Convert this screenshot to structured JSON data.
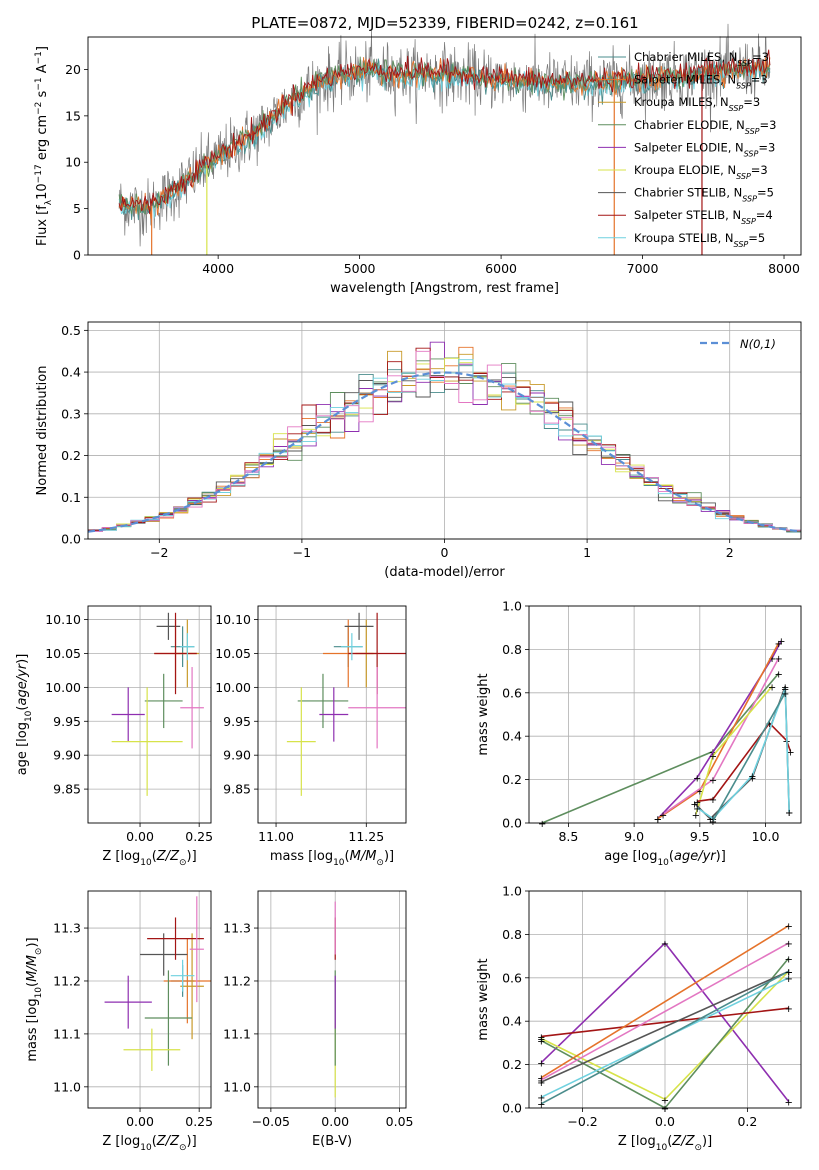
{
  "colors": {
    "Chabrier MILES": "#4a8c8c",
    "Salpeter MILES": "#e5732b",
    "Kroupa MILES": "#c89a2a",
    "Chabrier ELODIE": "#5e8e5e",
    "Salpeter ELODIE": "#8e2fb0",
    "Kroupa ELODIE": "#d7e34a",
    "Chabrier STELIB": "#555555",
    "Salpeter STELIB": "#a31515",
    "Kroupa STELIB": "#6fd1df",
    "pink": "#e377c2",
    "gauss": "#5b8fd6"
  },
  "chart_data": [
    {
      "type": "line",
      "title": "PLATE=0872, MJD=52339, FIBERID=0242, z=0.161",
      "xlabel": "wavelength [Angstrom, rest frame]",
      "ylabel": "Flux [f_λ10^-17 erg cm^-2 s^-1 A^-1]",
      "xlim": [
        3080,
        8120
      ],
      "ylim": [
        0,
        23.5
      ],
      "xticks": [
        4000,
        5000,
        6000,
        7000,
        8000
      ],
      "yticks": [
        0,
        5,
        10,
        15,
        20
      ],
      "grid": false,
      "legend_position": "top-right",
      "continuum": {
        "x": [
          3300,
          3500,
          3700,
          3900,
          4100,
          4300,
          4500,
          4700,
          4900,
          5100,
          5300,
          5500,
          5700,
          5900,
          6100,
          6300,
          6500,
          6700,
          6900,
          7100,
          7300,
          7500,
          7700,
          7900
        ],
        "y": [
          5.5,
          5.0,
          7.0,
          9.5,
          11.5,
          13.5,
          16.5,
          18.5,
          19.5,
          19.8,
          19.5,
          19.6,
          19.3,
          19.0,
          18.8,
          18.5,
          18.5,
          18.6,
          18.8,
          19.0,
          19.4,
          19.7,
          20.0,
          20.2
        ]
      },
      "series": [
        {
          "name": "Chabrier MILES, N_SSP=3",
          "label_main": "Chabrier MILES, N",
          "label_sub": "SSP",
          "label_tail": "=3"
        },
        {
          "name": "Salpeter MILES, N_SSP=3",
          "label_main": "Salpeter MILES, N",
          "label_sub": "SSP",
          "label_tail": "=3"
        },
        {
          "name": "Kroupa MILES, N_SSP=3",
          "label_main": "Kroupa MILES, N",
          "label_sub": "SSP",
          "label_tail": "=3"
        },
        {
          "name": "Chabrier ELODIE, N_SSP=3",
          "label_main": "Chabrier ELODIE, N",
          "label_sub": "SSP",
          "label_tail": "=3"
        },
        {
          "name": "Salpeter ELODIE, N_SSP=3",
          "label_main": "Salpeter ELODIE, N",
          "label_sub": "SSP",
          "label_tail": "=3"
        },
        {
          "name": "Kroupa ELODIE, N_SSP=3",
          "label_main": "Kroupa ELODIE, N",
          "label_sub": "SSP",
          "label_tail": "=3"
        },
        {
          "name": "Chabrier STELIB, N_SSP=5",
          "label_main": "Chabrier STELIB, N",
          "label_sub": "SSP",
          "label_tail": "=5"
        },
        {
          "name": "Salpeter STELIB, N_SSP=4",
          "label_main": "Salpeter STELIB, N",
          "label_sub": "SSP",
          "label_tail": "=4"
        },
        {
          "name": "Kroupa STELIB, N_SSP=5",
          "label_main": "Kroupa STELIB, N",
          "label_sub": "SSP",
          "label_tail": "=5"
        }
      ]
    },
    {
      "type": "histogram",
      "xlabel": "(data-model)/error",
      "ylabel": "Normed distribution",
      "xlim": [
        -2.5,
        2.5
      ],
      "ylim": [
        0,
        0.52
      ],
      "xticks": [
        -2,
        -1,
        0,
        1,
        2
      ],
      "yticks": [
        0.0,
        0.1,
        0.2,
        0.3,
        0.4,
        0.5
      ],
      "grid": true,
      "bin_width": 0.1,
      "legend_position": "top-right",
      "legend_label": "N(0,1)",
      "reference_curve": "normal pdf, mean 0, sigma 1, dashed"
    },
    {
      "type": "errorbar",
      "xlabel": "Z [log10(Z/Z_sun)]",
      "ylabel": "age  [log10(age/yr)]",
      "xlim": [
        -0.22,
        0.3
      ],
      "ylim": [
        9.8,
        10.12
      ],
      "xticks": [
        0.0,
        0.25
      ],
      "yticks": [
        9.85,
        9.9,
        9.95,
        10.0,
        10.05,
        10.1
      ],
      "grid": true,
      "points": [
        {
          "model": "Chabrier MILES",
          "x": 0.18,
          "y": 10.06,
          "xerr": 0.05,
          "yerr": 0.03
        },
        {
          "model": "Salpeter MILES",
          "x": 0.15,
          "y": 10.05,
          "xerr": 0.09,
          "yerr": 0.05
        },
        {
          "model": "Kroupa MILES",
          "x": 0.2,
          "y": 10.05,
          "xerr": 0.05,
          "yerr": 0.05
        },
        {
          "model": "Chabrier ELODIE",
          "x": 0.1,
          "y": 9.98,
          "xerr": 0.08,
          "yerr": 0.04
        },
        {
          "model": "Salpeter ELODIE",
          "x": -0.05,
          "y": 9.96,
          "xerr": 0.07,
          "yerr": 0.04
        },
        {
          "model": "Kroupa ELODIE",
          "x": 0.03,
          "y": 9.92,
          "xerr": 0.15,
          "yerr": 0.08
        },
        {
          "model": "Chabrier STELIB",
          "x": 0.12,
          "y": 10.09,
          "xerr": 0.05,
          "yerr": 0.02
        },
        {
          "model": "Salpeter STELIB",
          "x": 0.15,
          "y": 10.05,
          "xerr": 0.09,
          "yerr": 0.06
        },
        {
          "model": "Kroupa STELIB",
          "x": 0.2,
          "y": 10.06,
          "xerr": 0.03,
          "yerr": 0.02
        },
        {
          "model": "pink",
          "x": 0.22,
          "y": 9.97,
          "xerr": 0.05,
          "yerr": 0.06
        }
      ]
    },
    {
      "type": "errorbar",
      "xlabel": "mass [log10(M/M_sun)]",
      "ylabel": "",
      "xlim": [
        10.95,
        11.36
      ],
      "ylim": [
        9.8,
        10.12
      ],
      "xticks": [
        11.0,
        11.25
      ],
      "yticks": [
        9.85,
        9.9,
        9.95,
        10.0,
        10.05,
        10.1
      ],
      "grid": true,
      "points": [
        {
          "model": "Chabrier MILES",
          "x": 11.2,
          "y": 10.06,
          "xerr": 0.04,
          "yerr": 0.03
        },
        {
          "model": "Salpeter MILES",
          "x": 11.2,
          "y": 10.05,
          "xerr": 0.07,
          "yerr": 0.05
        },
        {
          "model": "Kroupa MILES",
          "x": 11.25,
          "y": 10.05,
          "xerr": 0.03,
          "yerr": 0.05
        },
        {
          "model": "Chabrier ELODIE",
          "x": 11.13,
          "y": 9.98,
          "xerr": 0.07,
          "yerr": 0.04
        },
        {
          "model": "Salpeter ELODIE",
          "x": 11.16,
          "y": 9.96,
          "xerr": 0.04,
          "yerr": 0.04
        },
        {
          "model": "Kroupa ELODIE",
          "x": 11.07,
          "y": 9.92,
          "xerr": 0.04,
          "yerr": 0.08
        },
        {
          "model": "Chabrier STELIB",
          "x": 11.23,
          "y": 10.09,
          "xerr": 0.04,
          "yerr": 0.02
        },
        {
          "model": "Salpeter STELIB",
          "x": 11.28,
          "y": 10.05,
          "xerr": 0.08,
          "yerr": 0.06
        },
        {
          "model": "Kroupa STELIB",
          "x": 11.21,
          "y": 10.06,
          "xerr": 0.03,
          "yerr": 0.02
        },
        {
          "model": "pink",
          "x": 11.28,
          "y": 9.97,
          "xerr": 0.08,
          "yerr": 0.06
        }
      ]
    },
    {
      "type": "line",
      "xlabel": "age  [log10(age/yr)]",
      "ylabel": "mass weight",
      "xlim": [
        8.2,
        10.27
      ],
      "ylim": [
        0,
        1.0
      ],
      "xticks": [
        8.5,
        9.0,
        9.5,
        10.0
      ],
      "yticks": [
        0.0,
        0.2,
        0.4,
        0.6,
        0.8,
        1.0
      ],
      "grid": true,
      "series": [
        {
          "model": "Chabrier ELODIE",
          "x": [
            8.3,
            9.6,
            10.1
          ],
          "y": [
            0.0,
            0.33,
            0.69
          ]
        },
        {
          "model": "Salpeter ELODIE",
          "x": [
            9.18,
            9.48,
            10.05,
            10.12
          ],
          "y": [
            0.02,
            0.21,
            0.76,
            0.84
          ]
        },
        {
          "model": "Salpeter MILES",
          "x": [
            9.18,
            9.5,
            10.1
          ],
          "y": [
            0.02,
            0.15,
            0.83
          ]
        },
        {
          "model": "pink",
          "x": [
            9.22,
            9.6,
            10.1
          ],
          "y": [
            0.04,
            0.2,
            0.76
          ]
        },
        {
          "model": "Kroupa ELODIE",
          "x": [
            9.47,
            9.6,
            10.05
          ],
          "y": [
            0.04,
            0.31,
            0.63
          ]
        },
        {
          "model": "Chabrier STELIB",
          "x": [
            9.46,
            9.58,
            9.9,
            10.15,
            10.18
          ],
          "y": [
            0.09,
            0.02,
            0.21,
            0.63,
            0.05
          ]
        },
        {
          "model": "Salpeter STELIB",
          "x": [
            9.48,
            9.6,
            10.03,
            10.16,
            10.19
          ],
          "y": [
            0.1,
            0.11,
            0.46,
            0.38,
            0.33
          ]
        },
        {
          "model": "Kroupa STELIB",
          "x": [
            9.48,
            9.6,
            9.9,
            10.15,
            10.18
          ],
          "y": [
            0.07,
            0.02,
            0.22,
            0.62,
            0.05
          ]
        },
        {
          "model": "Chabrier MILES",
          "x": [
            9.6,
            10.15
          ],
          "y": [
            0.01,
            0.6
          ]
        }
      ]
    },
    {
      "type": "errorbar",
      "xlabel": "Z [log10(Z/Z_sun)]",
      "ylabel": "mass [log10(M/M_sun)]",
      "xlim": [
        -0.22,
        0.3
      ],
      "ylim": [
        10.96,
        11.37
      ],
      "xticks": [
        0.0,
        0.25
      ],
      "yticks": [
        11.0,
        11.1,
        11.2,
        11.3
      ],
      "grid": true,
      "points": [
        {
          "model": "Chabrier MILES",
          "x": 0.18,
          "y": 11.2,
          "xerr": 0.05,
          "yerr": 0.03
        },
        {
          "model": "Salpeter MILES",
          "x": 0.2,
          "y": 11.2,
          "xerr": 0.1,
          "yerr": 0.08
        },
        {
          "model": "Kroupa MILES",
          "x": 0.22,
          "y": 11.19,
          "xerr": 0.05,
          "yerr": 0.1
        },
        {
          "model": "Chabrier ELODIE",
          "x": 0.12,
          "y": 11.13,
          "xerr": 0.1,
          "yerr": 0.09
        },
        {
          "model": "Salpeter ELODIE",
          "x": -0.05,
          "y": 11.16,
          "xerr": 0.1,
          "yerr": 0.05
        },
        {
          "model": "Kroupa ELODIE",
          "x": 0.05,
          "y": 11.07,
          "xerr": 0.12,
          "yerr": 0.04
        },
        {
          "model": "Chabrier STELIB",
          "x": 0.1,
          "y": 11.25,
          "xerr": 0.1,
          "yerr": 0.04
        },
        {
          "model": "Salpeter STELIB",
          "x": 0.15,
          "y": 11.28,
          "xerr": 0.12,
          "yerr": 0.04
        },
        {
          "model": "Kroupa STELIB",
          "x": 0.18,
          "y": 11.21,
          "xerr": 0.05,
          "yerr": 0.03
        },
        {
          "model": "pink",
          "x": 0.24,
          "y": 11.26,
          "xerr": 0.03,
          "yerr": 0.1
        }
      ]
    },
    {
      "type": "errorbar",
      "xlabel": "E(B-V)",
      "ylabel": "",
      "xlim": [
        -0.06,
        0.055
      ],
      "ylim": [
        10.96,
        11.37
      ],
      "xticks": [
        -0.05,
        0.0,
        0.05
      ],
      "yticks": [
        11.0,
        11.1,
        11.2,
        11.3
      ],
      "grid": true,
      "points": [
        {
          "model": "Kroupa ELODIE",
          "x": 0.0,
          "y": 11.05,
          "xerr": 0.0,
          "yerr": 0.07
        },
        {
          "model": "Chabrier ELODIE",
          "x": 0.0,
          "y": 11.13,
          "xerr": 0.0,
          "yerr": 0.09
        },
        {
          "model": "Salpeter ELODIE",
          "x": 0.0,
          "y": 11.16,
          "xerr": 0.0,
          "yerr": 0.05
        },
        {
          "model": "Salpeter STELIB",
          "x": 0.0,
          "y": 11.28,
          "xerr": 0.0,
          "yerr": 0.04
        },
        {
          "model": "pink",
          "x": 0.0,
          "y": 11.3,
          "xerr": 0.0,
          "yerr": 0.05
        }
      ]
    },
    {
      "type": "line",
      "xlabel": "Z [log10(Z/Z_sun)]",
      "ylabel": "mass weight",
      "xlim": [
        -0.33,
        0.33
      ],
      "ylim": [
        0,
        1.0
      ],
      "xticks": [
        -0.2,
        0.0,
        0.2
      ],
      "yticks": [
        0.0,
        0.2,
        0.4,
        0.6,
        0.8,
        1.0
      ],
      "grid": true,
      "series": [
        {
          "model": "Salpeter ELODIE",
          "x": [
            -0.3,
            0.0,
            0.3
          ],
          "y": [
            0.21,
            0.76,
            0.03
          ]
        },
        {
          "model": "Kroupa ELODIE",
          "x": [
            -0.3,
            0.0,
            0.3
          ],
          "y": [
            0.32,
            0.04,
            0.63
          ]
        },
        {
          "model": "Chabrier ELODIE",
          "x": [
            -0.3,
            0.0,
            0.3
          ],
          "y": [
            0.31,
            0.0,
            0.69
          ]
        },
        {
          "model": "Salpeter STELIB",
          "x": [
            -0.3,
            0.3
          ],
          "y": [
            0.33,
            0.46
          ]
        },
        {
          "model": "Salpeter MILES",
          "x": [
            -0.3,
            0.3
          ],
          "y": [
            0.14,
            0.84
          ]
        },
        {
          "model": "pink",
          "x": [
            -0.3,
            0.3
          ],
          "y": [
            0.13,
            0.76
          ]
        },
        {
          "model": "Chabrier STELIB",
          "x": [
            -0.3,
            0.3
          ],
          "y": [
            0.12,
            0.63
          ]
        },
        {
          "model": "Kroupa STELIB",
          "x": [
            -0.3,
            0.3
          ],
          "y": [
            0.05,
            0.6
          ]
        },
        {
          "model": "Chabrier MILES",
          "x": [
            -0.3,
            0.3
          ],
          "y": [
            0.02,
            0.63
          ]
        }
      ]
    }
  ]
}
